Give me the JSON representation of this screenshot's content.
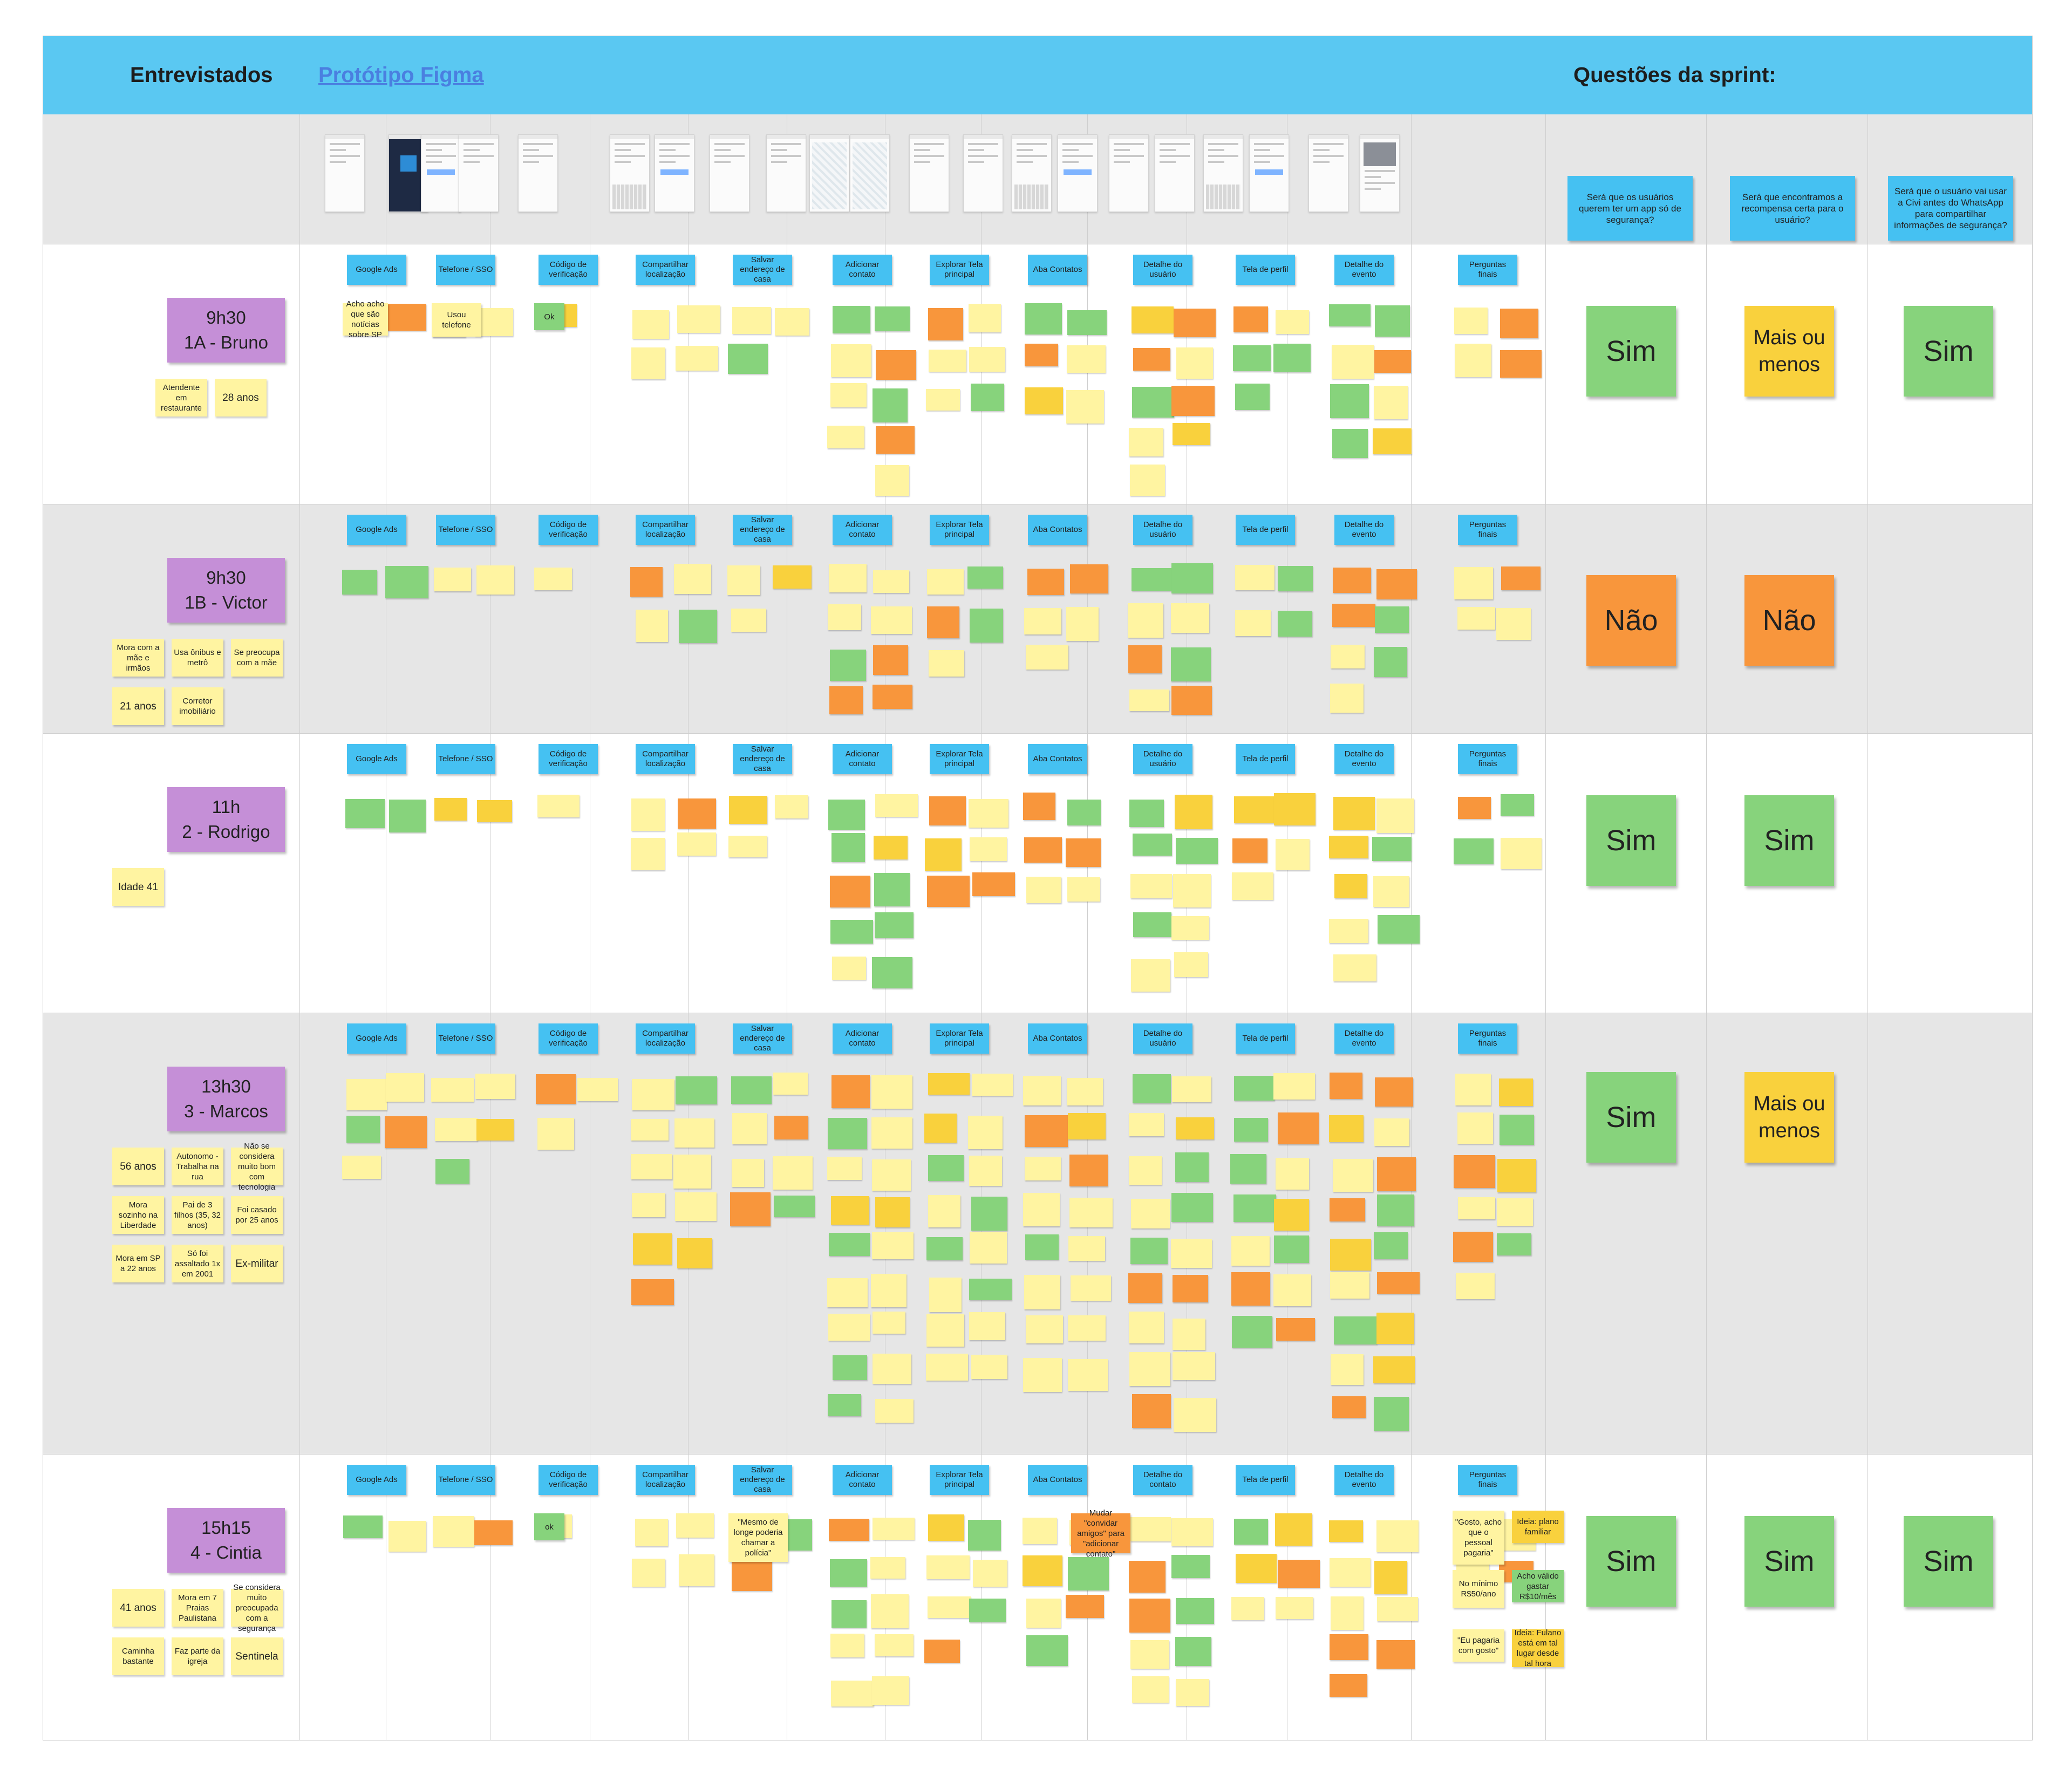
{
  "header": {
    "title": "Entrevistados",
    "prototype_link": "Protótipo Figma",
    "sprint_questions_title": "Questões da sprint:"
  },
  "questions": [
    "Será que os usuários querem ter um app só de segurança?",
    "Será que encontramos a recompensa certa para o usuário?",
    "Será que o usuário vai usar a Civi antes do WhatsApp para compartilhar informações de segurança?"
  ],
  "columns": [
    "Google Ads",
    "Telefone / SSO",
    "Código de verificação",
    "Compartilhar localização",
    "Salvar endereço de casa",
    "Adicionar contato",
    "Explorar Tela principal",
    "Aba Contatos",
    "Detalhe do usuário",
    "Tela de perfil",
    "Detalhe do evento",
    "Perguntas finais"
  ],
  "participants": [
    {
      "time": "9h30",
      "name": "1A - Bruno",
      "notes": [
        "Atendente em restaurante",
        "28 anos"
      ],
      "answers": [
        "Sim",
        "Mais ou menos",
        "Sim"
      ],
      "label_overrides": {},
      "readable": {
        "ads": "Acho acho que são notícias sobre SP",
        "phone": "Usou telefone",
        "code": "Ok"
      }
    },
    {
      "time": "9h30",
      "name": "1B - Victor",
      "notes": [
        "Mora com a mãe e irmãos",
        "Usa ônibus e metrô",
        "Se preocupa com a mãe",
        "21 anos",
        "Corretor imobiliário"
      ],
      "answers": [
        "Não",
        "Não",
        ""
      ],
      "label_overrides": {},
      "readable": {}
    },
    {
      "time": "11h",
      "name": "2 - Rodrigo",
      "notes": [
        "Idade 41"
      ],
      "answers": [
        "Sim",
        "Sim",
        ""
      ],
      "label_overrides": {},
      "readable": {}
    },
    {
      "time": "13h30",
      "name": "3 - Marcos",
      "notes": [
        "56 anos",
        "Autonomo - Trabalha na rua",
        "Não se considera muito bom com tecnologia",
        "Mora sozinho na Liberdade",
        "Pai de 3 filhos (35, 32 anos)",
        "Foi casado por 25 anos",
        "Mora em SP a 22 anos",
        "Só foi assaltado 1x em 2001",
        "Ex-militar"
      ],
      "answers": [
        "Sim",
        "Mais ou menos",
        ""
      ],
      "label_overrides": {},
      "readable": {
        "ads": "",
        "code": ""
      }
    },
    {
      "time": "15h15",
      "name": "4 - Cintia",
      "notes": [
        "41 anos",
        "Mora em 7 Praias Paulistana",
        "Se considera muito preocupada com a segurança",
        "Caminha bastante",
        "Faz parte da igreja",
        "Sentinela"
      ],
      "answers": [
        "Sim",
        "Sim",
        "Sim"
      ],
      "label_overrides": {
        "8": "Detalhe do contato"
      },
      "readable": {
        "code": "ok",
        "final1": "\"Gosto, acho que o pessoal pagaria\"",
        "final2": "Ideia: plano familiar",
        "final3": "No mínimo R$50/ano",
        "final4": "Acho válido gastar R$10/mês",
        "final5": "\"Eu pagaria com gosto\"",
        "final6": "Ideia: Fulano está em tal lugar desde tal hora",
        "salvar": "\"Mesmo de longe poderia chamar a polícia\"",
        "contatos": "Mudar \"convidar amigos\" para \"adicionar contato\""
      }
    }
  ],
  "colors": {
    "header": "#5ac8f2",
    "label": "#45c1f2",
    "participant": "#c58fd7",
    "yes": "#87d37c",
    "no": "#f8963c",
    "maybe": "#f9d13d",
    "note_yellow": "#fff4a1"
  }
}
